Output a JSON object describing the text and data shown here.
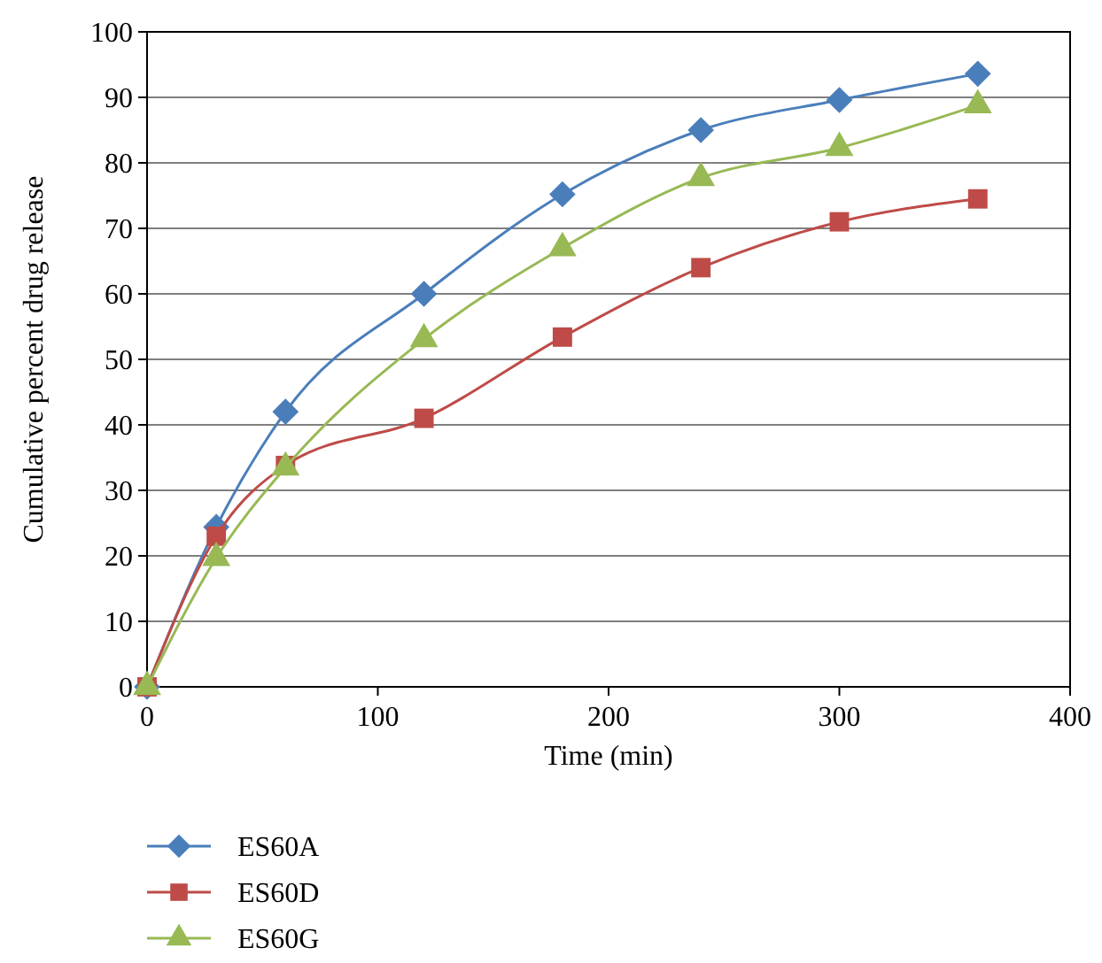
{
  "chart_data": {
    "type": "line",
    "xlabel": "Time (min)",
    "ylabel": "Cumulative percent drug release",
    "x": [
      0,
      30,
      60,
      120,
      180,
      240,
      300,
      360
    ],
    "series": [
      {
        "name": "ES60A",
        "color": "#4a7ebb",
        "marker": "diamond",
        "values": [
          0,
          24.4,
          42,
          60,
          75.2,
          85,
          89.6,
          93.6
        ]
      },
      {
        "name": "ES60D",
        "color": "#be4b48",
        "marker": "square",
        "values": [
          0,
          23,
          33.8,
          41,
          53.4,
          64,
          71,
          74.5
        ]
      },
      {
        "name": "ES60G",
        "color": "#98b954",
        "marker": "triangle",
        "values": [
          0,
          19.7,
          33.5,
          53.1,
          67,
          77.7,
          82.3,
          88.8
        ]
      }
    ],
    "xlim": [
      0,
      400
    ],
    "xticks": [
      0,
      100,
      200,
      300,
      400
    ],
    "ylim": [
      0,
      100
    ],
    "yticks": [
      0,
      10,
      20,
      30,
      40,
      50,
      60,
      70,
      80,
      90,
      100
    ],
    "grid": "y",
    "legend": "bottom left",
    "line_style": "solid"
  }
}
